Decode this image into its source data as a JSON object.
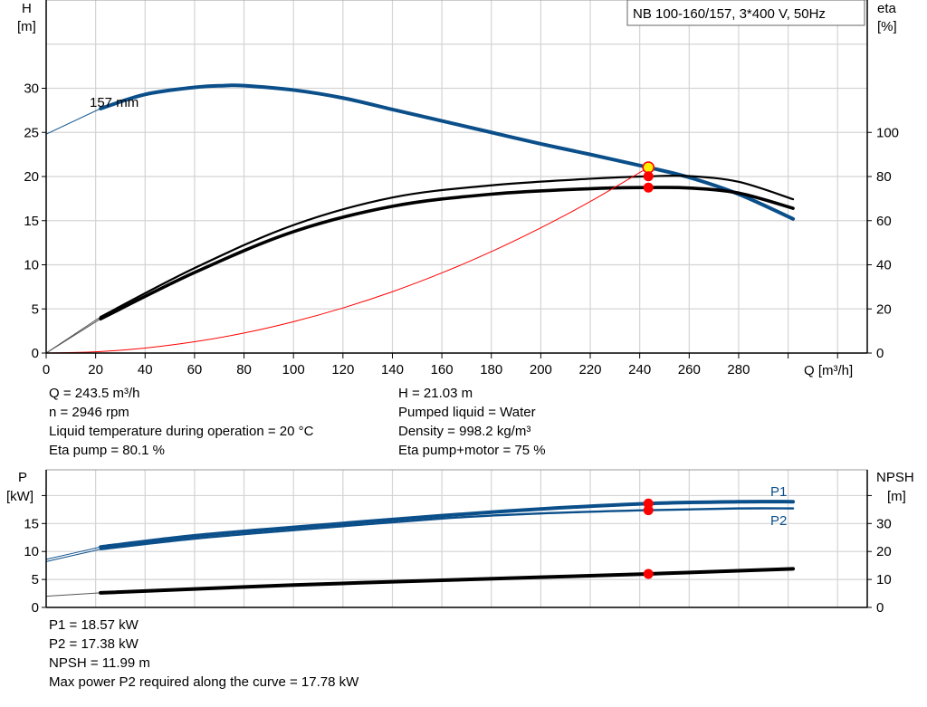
{
  "chart_data": [
    {
      "type": "line",
      "legend_box": "NB 100-160/157, 3*400 V, 50Hz",
      "xlabel": "Q [m³/h]",
      "ylabel_left": {
        "name": "H",
        "unit": "[m]"
      },
      "ylabel_right": {
        "name": "eta",
        "unit": "[%]"
      },
      "xlim": [
        0,
        332
      ],
      "ylim_left": [
        0,
        40
      ],
      "ylim_right": [
        0,
        160
      ],
      "x_ticks": [
        "0",
        "20",
        "40",
        "60",
        "80",
        "100",
        "120",
        "140",
        "160",
        "180",
        "200",
        "220",
        "240",
        "260",
        "280"
      ],
      "y_ticks_left": [
        "0",
        "5",
        "10",
        "15",
        "20",
        "25",
        "30"
      ],
      "y_ticks_right": [
        "0",
        "20",
        "40",
        "60",
        "80",
        "100"
      ],
      "grid": true,
      "curve_label": "157 mm",
      "series": [
        {
          "key": "H",
          "axis": "left",
          "color": "#0b4f8a",
          "x": [
            0,
            22,
            40,
            60,
            72,
            80,
            100,
            120,
            140,
            160,
            180,
            200,
            220,
            243.5,
            260,
            280,
            302
          ],
          "y": [
            24.8,
            27.7,
            29.3,
            30.1,
            30.3,
            30.3,
            29.8,
            28.9,
            27.6,
            26.3,
            25.0,
            23.7,
            22.5,
            21.03,
            19.9,
            18.0,
            15.2
          ]
        },
        {
          "key": "eta_pump",
          "axis": "right",
          "color": "#000000",
          "x": [
            0,
            22,
            60,
            100,
            140,
            180,
            220,
            243.5,
            260,
            280,
            302
          ],
          "y": [
            0,
            16.4,
            38.5,
            58,
            70.5,
            76,
            79,
            80.1,
            80.2,
            77.6,
            69.7
          ]
        },
        {
          "key": "eta_pump_motor",
          "axis": "right",
          "color": "#000000",
          "x": [
            0,
            22,
            60,
            100,
            140,
            180,
            220,
            243.5,
            260,
            280,
            302
          ],
          "y": [
            0,
            15.5,
            36.5,
            55,
            66.5,
            72,
            74.5,
            75,
            74.8,
            72.5,
            65.6
          ]
        },
        {
          "key": "system_curve",
          "axis": "left",
          "color": "#ff0000",
          "x": [
            0,
            20,
            40,
            60,
            80,
            100,
            120,
            140,
            160,
            180,
            200,
            220,
            243.5
          ],
          "y": [
            0,
            0.14,
            0.57,
            1.28,
            2.27,
            3.55,
            5.11,
            6.95,
            9.08,
            11.49,
            14.19,
            17.17,
            21.03
          ]
        }
      ],
      "duty_point": {
        "Q": 243.5,
        "H": 21.03,
        "eta_pump": 80.1,
        "eta_pump_motor": 75
      }
    },
    {
      "type": "line",
      "ylabel_left": {
        "name": "P",
        "unit": "[kW]"
      },
      "ylabel_right": {
        "name": "NPSH",
        "unit": "[m]"
      },
      "xlim": [
        0,
        332
      ],
      "ylim_left": [
        0,
        24.6
      ],
      "ylim_right": [
        0,
        49.2
      ],
      "y_ticks_left": [
        "0",
        "5",
        "10",
        "15"
      ],
      "y_ticks_right": [
        "0",
        "10",
        "20",
        "30"
      ],
      "grid": true,
      "series": [
        {
          "key": "P1",
          "name": "P1",
          "axis": "left",
          "color": "#0b4f8a",
          "x": [
            0,
            22,
            60,
            100,
            160,
            200,
            243.5,
            280,
            302
          ],
          "y": [
            8.6,
            10.8,
            12.8,
            14.3,
            16.4,
            17.6,
            18.57,
            18.9,
            18.9
          ]
        },
        {
          "key": "P2",
          "name": "P2",
          "axis": "left",
          "color": "#0b4f8a",
          "x": [
            0,
            22,
            60,
            100,
            160,
            200,
            243.5,
            280,
            302
          ],
          "y": [
            8.2,
            10.4,
            12.3,
            13.8,
            15.9,
            16.8,
            17.38,
            17.7,
            17.7
          ]
        },
        {
          "key": "NPSH",
          "axis": "right",
          "color": "#000000",
          "x": [
            0,
            22,
            100,
            160,
            243.5,
            302
          ],
          "y": [
            4.0,
            5.2,
            8.0,
            9.7,
            11.99,
            13.8
          ]
        }
      ],
      "duty_point": {
        "Q": 243.5,
        "P1": 18.57,
        "P2": 17.38,
        "NPSH": 11.99
      }
    }
  ],
  "info_top": {
    "left": [
      "Q = 243.5 m³/h",
      "n = 2946 rpm",
      "Liquid temperature during operation = 20 °C",
      "Eta pump = 80.1 %"
    ],
    "right": [
      "H = 21.03 m",
      "Pumped liquid = Water",
      "Density = 998.2 kg/m³",
      "Eta pump+motor = 75 %"
    ]
  },
  "info_bottom": [
    "P1 = 18.57 kW",
    "P2 = 17.38 kW",
    "NPSH = 11.99 m",
    "Max power P2 required along the curve = 17.78 kW"
  ]
}
